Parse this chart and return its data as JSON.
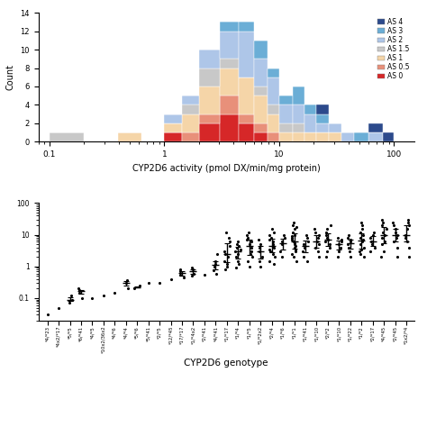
{
  "hist_colors": {
    "AS 0": "#d62728",
    "AS 0.5": "#e8907a",
    "AS 1": "#f5d5a8",
    "AS 1.5": "#c8c8c8",
    "AS 2": "#aec6e8",
    "AS 3": "#6baed6",
    "AS 4": "#2c4a8c"
  },
  "hist_xlabel": "CYP2D6 activity (pmol DX/min/mg protein)",
  "hist_bins_log": [
    -1.0,
    -0.7,
    -0.4,
    -0.2,
    0.0,
    0.15,
    0.3,
    0.48,
    0.65,
    0.78,
    0.9,
    1.0,
    1.12,
    1.22,
    1.32,
    1.43,
    1.54,
    1.65,
    1.78,
    1.9,
    2.0
  ],
  "hist_data": {
    "AS 0": [
      0,
      0,
      0,
      0,
      1,
      0,
      2,
      3,
      2,
      1,
      0,
      0,
      0,
      0,
      0,
      0,
      0,
      0,
      0,
      0
    ],
    "AS 0.5": [
      0,
      0,
      0,
      0,
      0,
      1,
      1,
      2,
      1,
      1,
      1,
      0,
      0,
      0,
      0,
      0,
      0,
      0,
      0,
      0
    ],
    "AS 1": [
      0,
      0,
      1,
      0,
      1,
      2,
      3,
      3,
      4,
      3,
      2,
      1,
      1,
      1,
      1,
      1,
      0,
      0,
      0,
      0
    ],
    "AS 1.5": [
      1,
      0,
      0,
      0,
      0,
      1,
      2,
      1,
      0,
      1,
      1,
      1,
      1,
      0,
      0,
      0,
      0,
      0,
      0,
      0
    ],
    "AS 2": [
      0,
      0,
      0,
      0,
      1,
      1,
      2,
      3,
      5,
      3,
      3,
      2,
      2,
      2,
      1,
      1,
      1,
      0,
      1,
      0
    ],
    "AS 3": [
      0,
      0,
      0,
      0,
      0,
      0,
      0,
      1,
      1,
      2,
      1,
      1,
      2,
      1,
      1,
      0,
      0,
      1,
      0,
      0
    ],
    "AS 4": [
      0,
      0,
      0,
      0,
      0,
      0,
      0,
      0,
      0,
      0,
      0,
      0,
      0,
      0,
      1,
      0,
      0,
      0,
      1,
      1
    ]
  },
  "scatter_xlabel": "CYP2D6 genotype",
  "scatter_genotypes": [
    "*4/*23",
    "*4x2/*17",
    "*5/*5",
    "*6/*41",
    "*4/*5",
    "*10x2/36x2",
    "*4/*6",
    "*4/*4",
    "*5/*6",
    "*5/*41",
    "*2/*5",
    "*12/*45",
    "*17/*17",
    "*1/*4x2",
    "*2/*41",
    "*4/*41",
    "*1/*17",
    "*1/*4",
    "*1/*5",
    "*1/*2x2",
    "*2/*4",
    "*1/*6",
    "*1/*1",
    "*1/*41",
    "*1/*10",
    "*2/*2",
    "*1/*10",
    "*1/*22",
    "*1/*2",
    "*2/*17",
    "*4/*45",
    "*2/*45",
    "*1x2/*4"
  ],
  "scatter_y": [
    [
      0.03
    ],
    [
      0.05
    ],
    [
      0.07,
      0.09,
      0.12
    ],
    [
      0.1,
      0.15,
      0.18,
      0.2
    ],
    [
      0.1
    ],
    [
      0.12
    ],
    [
      0.15
    ],
    [
      0.2,
      0.3,
      0.38
    ],
    [
      0.2,
      0.25
    ],
    [
      0.3
    ],
    [
      0.3
    ],
    [
      0.4
    ],
    [
      0.45,
      0.55,
      0.7,
      0.8
    ],
    [
      0.5,
      0.6,
      0.8,
      0.9
    ],
    [
      0.55
    ],
    [
      0.6,
      0.75,
      1.0,
      1.2,
      1.5,
      2.5
    ],
    [
      0.8,
      1.0,
      1.2,
      1.5,
      2.0,
      2.5,
      3.0,
      4.5,
      6.0,
      8.0,
      12.0
    ],
    [
      0.9,
      1.2,
      1.5,
      2.0,
      2.5,
      3.0,
      3.5,
      4.0,
      4.5,
      5.0,
      6.0
    ],
    [
      1.0,
      1.5,
      2.0,
      2.5,
      3.0,
      4.0,
      5.0,
      6.0,
      7.0,
      8.0,
      10.0,
      12.0
    ],
    [
      1.0,
      1.5,
      2.0,
      3.0,
      4.0,
      5.0,
      7.0
    ],
    [
      1.2,
      1.5,
      2.0,
      2.5,
      3.0,
      3.5,
      4.0,
      4.5,
      5.0,
      6.0,
      7.0,
      8.0,
      10.0,
      12.0,
      15.0
    ],
    [
      2.0,
      3.0,
      5.0,
      6.0,
      8.0,
      10.0
    ],
    [
      1.5,
      2.0,
      2.5,
      3.0,
      3.5,
      4.0,
      4.5,
      5.0,
      5.5,
      6.0,
      7.0,
      8.0,
      9.0,
      10.0,
      12.0,
      15.0,
      18.0,
      20.0,
      25.0
    ],
    [
      1.5,
      2.0,
      3.0,
      4.0,
      5.0,
      6.0,
      8.0,
      10.0
    ],
    [
      2.0,
      3.0,
      4.0,
      5.0,
      6.0,
      8.0,
      10.0,
      12.0,
      15.0
    ],
    [
      2.0,
      3.0,
      4.0,
      5.0,
      6.0,
      7.0,
      8.0,
      10.0,
      12.0,
      15.0,
      20.0
    ],
    [
      2.0,
      3.0,
      4.0,
      5.0,
      6.0,
      7.0,
      8.0
    ],
    [
      2.0,
      3.0,
      4.0,
      5.0,
      6.0,
      7.0,
      8.0,
      10.0
    ],
    [
      2.0,
      2.5,
      3.0,
      3.5,
      4.0,
      5.0,
      6.0,
      7.0,
      8.0,
      10.0,
      12.0,
      15.0,
      20.0,
      25.0
    ],
    [
      3.0,
      4.0,
      5.0,
      6.0,
      8.0,
      10.0,
      12.0
    ],
    [
      2.0,
      3.0,
      5.0,
      6.0,
      8.0,
      10.0,
      12.0,
      15.0,
      20.0,
      25.0,
      30.0
    ],
    [
      2.0,
      4.0,
      6.0,
      8.0,
      10.0,
      12.0,
      15.0,
      20.0,
      25.0
    ],
    [
      2.0,
      4.0,
      6.0,
      8.0,
      10.0,
      15.0,
      20.0,
      25.0,
      30.0
    ]
  ],
  "background_color": "#ffffff"
}
